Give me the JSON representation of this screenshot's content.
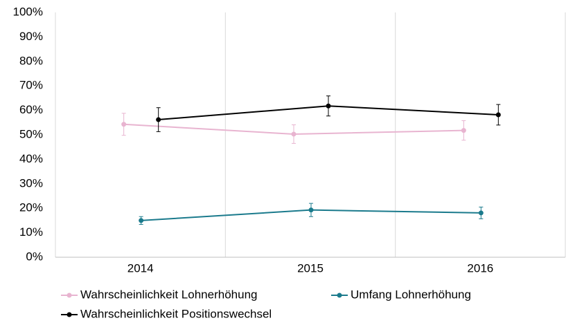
{
  "chart_data": {
    "type": "line",
    "categories": [
      "2014",
      "2015",
      "2016"
    ],
    "ylim": [
      0,
      100
    ],
    "yticks": [
      {
        "value": 0,
        "label": "0%"
      },
      {
        "value": 10,
        "label": "10%"
      },
      {
        "value": 20,
        "label": "20%"
      },
      {
        "value": 30,
        "label": "30%"
      },
      {
        "value": 40,
        "label": "40%"
      },
      {
        "value": 50,
        "label": "50%"
      },
      {
        "value": 60,
        "label": "60%"
      },
      {
        "value": 70,
        "label": "70%"
      },
      {
        "value": 80,
        "label": "80%"
      },
      {
        "value": 90,
        "label": "90%"
      },
      {
        "value": 100,
        "label": "100%"
      }
    ],
    "series": [
      {
        "name": "Wahrscheinlichkeit Lohnerhöhung",
        "color": "#e8b4d0",
        "values": [
          54.3,
          50.3,
          51.8
        ],
        "errors": [
          4.5,
          3.8,
          4.0
        ]
      },
      {
        "name": "Umfang Lohnerhöhung",
        "color": "#1a7a8c",
        "values": [
          15.0,
          19.3,
          18.1
        ],
        "errors": [
          1.6,
          2.7,
          2.4
        ]
      },
      {
        "name": "Wahrscheinlichkeit Positionswechsel",
        "color": "#000000",
        "values": [
          56.2,
          61.8,
          58.2
        ],
        "errors": [
          4.9,
          4.1,
          4.2
        ]
      }
    ]
  }
}
